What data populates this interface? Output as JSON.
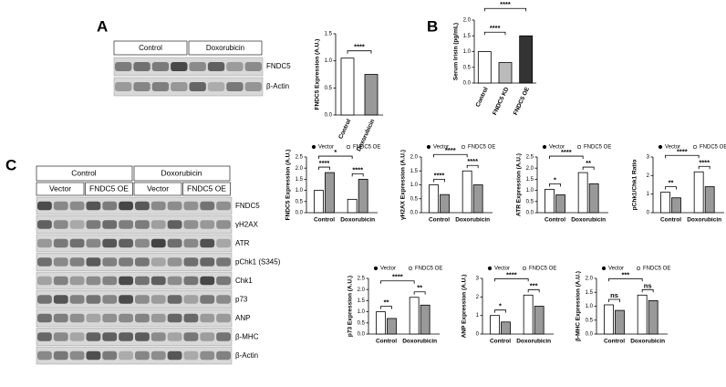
{
  "panel_labels": [
    "A",
    "B",
    "C"
  ],
  "blot_a": {
    "groups": [
      "Control",
      "Doxorubicin"
    ],
    "rows": [
      "FNDC5",
      "β-Actin"
    ]
  },
  "blot_c": {
    "groups": [
      "Control",
      "Doxorubicin"
    ],
    "subgroups": [
      "Vector",
      "FNDC5 OE",
      "Vector",
      "FNDC5 OE"
    ],
    "rows": [
      "FNDC5",
      "γH2AX",
      "ATR",
      "pChk1 (S345)",
      "Chk1",
      "p73",
      "ANP",
      "β-MHC",
      "β-Actin"
    ]
  },
  "chart_data": [
    {
      "type": "bar",
      "ylabel": "FNDC5 Expression (A.U.)",
      "categories": [
        "Control",
        "Doxorubicin"
      ],
      "values": [
        1.05,
        0.75
      ],
      "colors": [
        "#ffffff",
        "#999999"
      ],
      "ylim": [
        0,
        1.5
      ],
      "yticks": [
        {
          "value": 0,
          "label": "0.0"
        },
        {
          "value": 0.5,
          "label": "0.5"
        },
        {
          "value": 1,
          "label": "1.0"
        },
        {
          "value": 1.5,
          "label": "1.5"
        }
      ],
      "annotations": [
        "****"
      ]
    },
    {
      "type": "bar",
      "ylabel": "Serum Irisin (pg/mL)",
      "categories": [
        "Control",
        "FNDC5 KD",
        "FNDC5 OE"
      ],
      "values": [
        1.0,
        0.65,
        1.5
      ],
      "colors": [
        "#ffffff",
        "#bbbbbb",
        "#333333"
      ],
      "ylim": [
        0,
        2
      ],
      "yticks": [
        {
          "value": 0,
          "label": "0.0"
        },
        {
          "value": 0.5,
          "label": "0.5"
        },
        {
          "value": 1,
          "label": "1.0"
        },
        {
          "value": 1.5,
          "label": "1.5"
        },
        {
          "value": 2,
          "label": "2.0"
        }
      ],
      "annotations": [
        "****",
        "****"
      ]
    },
    {
      "type": "grouped-bar",
      "ylabel": "FNDC5 Expression (A.U.)",
      "categories": [
        "Control",
        "Doxorubicin"
      ],
      "series": [
        {
          "name": "Vector",
          "color": "#ffffff",
          "values": [
            1.0,
            0.6
          ]
        },
        {
          "name": "FNDC5 OE",
          "color": "#999999",
          "values": [
            1.8,
            1.5
          ]
        }
      ],
      "ylim": [
        0,
        2.5
      ],
      "yticks": [
        {
          "value": 0,
          "label": "0.0"
        },
        {
          "value": 0.5,
          "label": "0.5"
        },
        {
          "value": 1,
          "label": "1.0"
        },
        {
          "value": 1.5,
          "label": "1.5"
        },
        {
          "value": 2,
          "label": "2.0"
        },
        {
          "value": 2.5,
          "label": "2.5"
        }
      ],
      "annotations": [
        "****",
        "****",
        "*"
      ]
    },
    {
      "type": "grouped-bar",
      "ylabel": "γH2AX Expression (A.U.)",
      "categories": [
        "Control",
        "Doxorubicin"
      ],
      "series": [
        {
          "name": "Vector",
          "color": "#ffffff",
          "values": [
            1.0,
            1.5
          ]
        },
        {
          "name": "FNDC5 OE",
          "color": "#999999",
          "values": [
            0.65,
            1.0
          ]
        }
      ],
      "ylim": [
        0,
        2
      ],
      "yticks": [
        {
          "value": 0,
          "label": "0.0"
        },
        {
          "value": 0.5,
          "label": "0.5"
        },
        {
          "value": 1,
          "label": "1.0"
        },
        {
          "value": 1.5,
          "label": "1.5"
        },
        {
          "value": 2,
          "label": "2.0"
        }
      ],
      "annotations": [
        "****",
        "****",
        "****"
      ]
    },
    {
      "type": "grouped-bar",
      "ylabel": "ATR Expression (A.U.)",
      "categories": [
        "Control",
        "Doxorubicin"
      ],
      "series": [
        {
          "name": "Vector",
          "color": "#ffffff",
          "values": [
            1.05,
            1.8
          ]
        },
        {
          "name": "FNDC5 OE",
          "color": "#999999",
          "values": [
            0.8,
            1.3
          ]
        }
      ],
      "ylim": [
        0,
        2.5
      ],
      "yticks": [
        {
          "value": 0,
          "label": "0.0"
        },
        {
          "value": 0.5,
          "label": "0.5"
        },
        {
          "value": 1,
          "label": "1.0"
        },
        {
          "value": 1.5,
          "label": "1.5"
        },
        {
          "value": 2,
          "label": "2.0"
        },
        {
          "value": 2.5,
          "label": "2.5"
        }
      ],
      "annotations": [
        "*",
        "**",
        "****"
      ]
    },
    {
      "type": "grouped-bar",
      "ylabel": "pChk1/Chk1 Ratio",
      "categories": [
        "Control",
        "Doxorubicin"
      ],
      "series": [
        {
          "name": "Vector",
          "color": "#ffffff",
          "values": [
            1.1,
            2.2
          ]
        },
        {
          "name": "FNDC5 OE",
          "color": "#999999",
          "values": [
            0.8,
            1.4
          ]
        }
      ],
      "ylim": [
        0,
        3
      ],
      "yticks": [
        0,
        1,
        2,
        3
      ],
      "annotations": [
        "**",
        "****",
        "****"
      ]
    },
    {
      "type": "grouped-bar",
      "ylabel": "p73 Expression (A.U.)",
      "categories": [
        "Control",
        "Doxorubicin"
      ],
      "series": [
        {
          "name": "Vector",
          "color": "#ffffff",
          "values": [
            1.0,
            1.65
          ]
        },
        {
          "name": "FNDC5 OE",
          "color": "#999999",
          "values": [
            0.7,
            1.3
          ]
        }
      ],
      "ylim": [
        0,
        2.5
      ],
      "yticks": [
        {
          "value": 0,
          "label": "0.0"
        },
        {
          "value": 0.5,
          "label": "0.5"
        },
        {
          "value": 1,
          "label": "1.0"
        },
        {
          "value": 1.5,
          "label": "1.5"
        },
        {
          "value": 2,
          "label": "2.0"
        },
        {
          "value": 2.5,
          "label": "2.5"
        }
      ],
      "annotations": [
        "**",
        "**",
        "****"
      ]
    },
    {
      "type": "grouped-bar",
      "ylabel": "ANP Expression (A.U.)",
      "categories": [
        "Control",
        "Doxorubicin"
      ],
      "series": [
        {
          "name": "Vector",
          "color": "#ffffff",
          "values": [
            1.0,
            2.1
          ]
        },
        {
          "name": "FNDC5 OE",
          "color": "#999999",
          "values": [
            0.65,
            1.5
          ]
        }
      ],
      "ylim": [
        0,
        3
      ],
      "yticks": [
        0,
        1,
        2,
        3
      ],
      "annotations": [
        "*",
        "***",
        "****"
      ]
    },
    {
      "type": "grouped-bar",
      "ylabel": "β-MHC Expression (A.U.)",
      "categories": [
        "Control",
        "Doxorubicin"
      ],
      "series": [
        {
          "name": "Vector",
          "color": "#ffffff",
          "values": [
            1.05,
            1.4
          ]
        },
        {
          "name": "FNDC5 OE",
          "color": "#999999",
          "values": [
            0.85,
            1.2
          ]
        }
      ],
      "ylim": [
        0,
        2
      ],
      "yticks": [
        {
          "value": 0,
          "label": "0.0"
        },
        {
          "value": 0.5,
          "label": "0.5"
        },
        {
          "value": 1,
          "label": "1.0"
        },
        {
          "value": 1.5,
          "label": "1.5"
        },
        {
          "value": 2,
          "label": "2.0"
        }
      ],
      "annotations": [
        "ns",
        "ns",
        "***"
      ]
    }
  ]
}
